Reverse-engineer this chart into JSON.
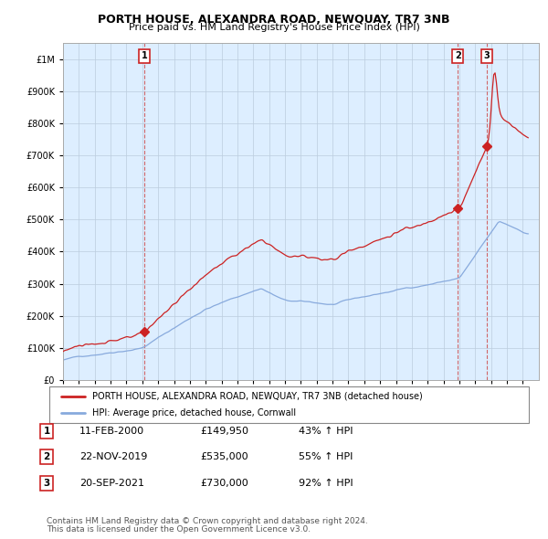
{
  "title": "PORTH HOUSE, ALEXANDRA ROAD, NEWQUAY, TR7 3NB",
  "subtitle": "Price paid vs. HM Land Registry's House Price Index (HPI)",
  "hpi_label": "HPI: Average price, detached house, Cornwall",
  "house_label": "PORTH HOUSE, ALEXANDRA ROAD, NEWQUAY, TR7 3NB (detached house)",
  "footer1": "Contains HM Land Registry data © Crown copyright and database right 2024.",
  "footer2": "This data is licensed under the Open Government Licence v3.0.",
  "house_color": "#cc2222",
  "hpi_color": "#88aadd",
  "annotation_box_color": "#cc2222",
  "chart_bg": "#ddeeff",
  "ylim": [
    0,
    1050000
  ],
  "yticks": [
    0,
    100000,
    200000,
    300000,
    400000,
    500000,
    600000,
    700000,
    800000,
    900000,
    1000000
  ],
  "sales": [
    {
      "date_num": 2000.12,
      "price": 149950,
      "label": "1"
    },
    {
      "date_num": 2019.9,
      "price": 535000,
      "label": "2"
    },
    {
      "date_num": 2021.72,
      "price": 730000,
      "label": "3"
    }
  ],
  "table_rows": [
    {
      "num": "1",
      "date": "11-FEB-2000",
      "price": "£149,950",
      "hpi": "43% ↑ HPI"
    },
    {
      "num": "2",
      "date": "22-NOV-2019",
      "price": "£535,000",
      "hpi": "55% ↑ HPI"
    },
    {
      "num": "3",
      "date": "20-SEP-2021",
      "price": "£730,000",
      "hpi": "92% ↑ HPI"
    }
  ]
}
